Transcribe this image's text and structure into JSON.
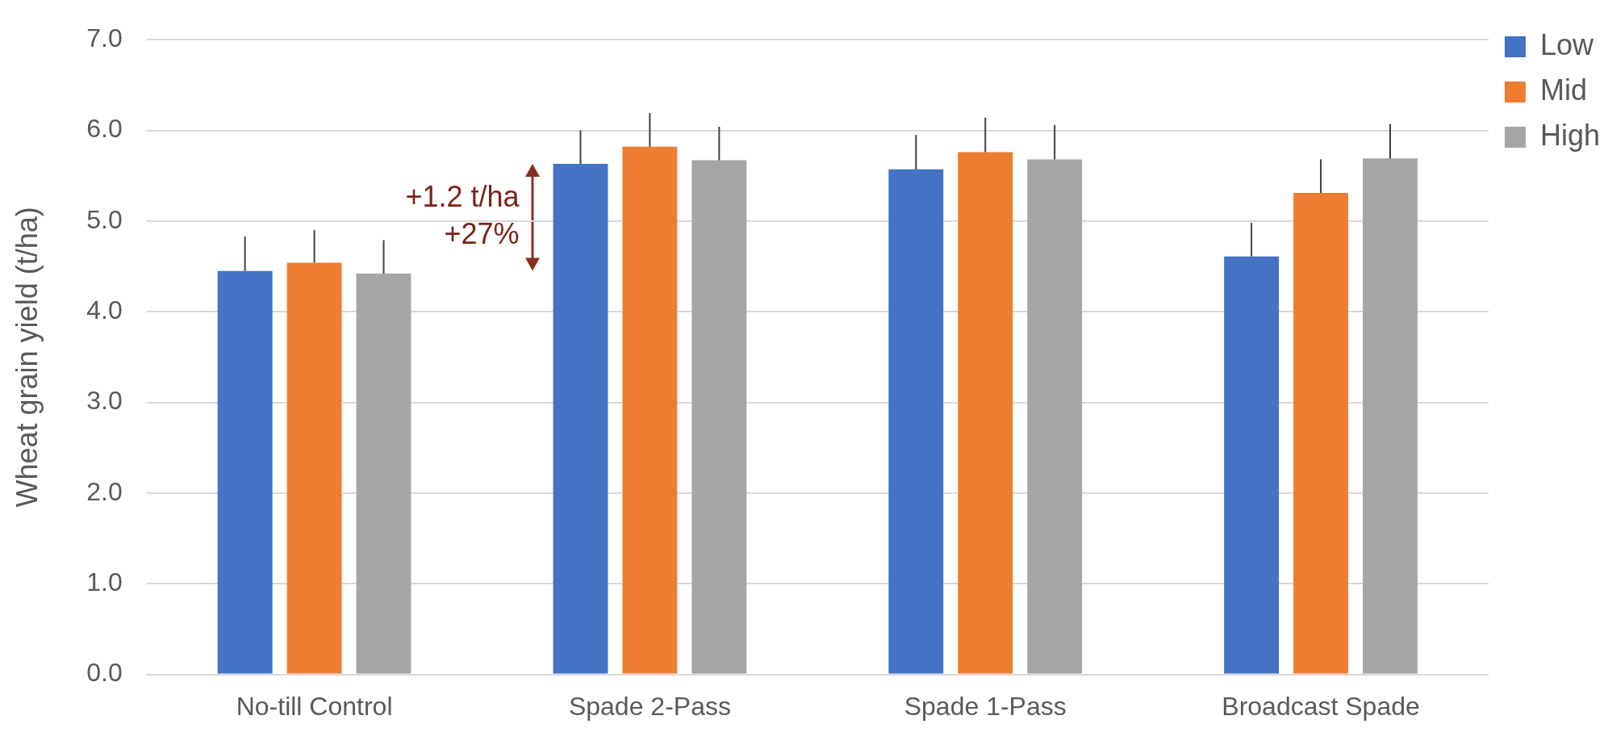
{
  "chart_data": {
    "type": "bar",
    "ylabel": "Wheat grain yield (t/ha)",
    "categories": [
      "No-till Control",
      "Spade 2-Pass",
      "Spade 1-Pass",
      "Broadcast Spade"
    ],
    "series": [
      {
        "name": "Low",
        "color": "#4472c4",
        "values": [
          4.45,
          5.63,
          5.57,
          4.61
        ],
        "errors": [
          [
            4.45,
            4.83
          ],
          [
            5.63,
            6.0
          ],
          [
            5.57,
            5.95
          ],
          [
            4.61,
            4.98
          ]
        ]
      },
      {
        "name": "Mid",
        "color": "#ed7d31",
        "values": [
          4.54,
          5.82,
          5.76,
          5.31
        ],
        "errors": [
          [
            4.54,
            4.9
          ],
          [
            5.82,
            6.19
          ],
          [
            5.76,
            6.14
          ],
          [
            5.31,
            5.68
          ]
        ]
      },
      {
        "name": "High",
        "color": "#a5a5a5",
        "values": [
          4.42,
          5.67,
          5.68,
          5.69
        ],
        "errors": [
          [
            4.42,
            4.79
          ],
          [
            5.67,
            6.04
          ],
          [
            5.68,
            6.06
          ],
          [
            5.69,
            6.07
          ]
        ]
      }
    ],
    "annotations": [
      "+1.2 t/ha",
      "+27%"
    ],
    "ylim": [
      0,
      7
    ],
    "yticks": [
      {
        "value": 0,
        "label": "0.0"
      },
      {
        "value": 1,
        "label": "1.0"
      },
      {
        "value": 2,
        "label": "2.0"
      },
      {
        "value": 3,
        "label": "3.0"
      },
      {
        "value": 4,
        "label": "4.0"
      },
      {
        "value": 5,
        "label": "5.0"
      },
      {
        "value": 6,
        "label": "6.0"
      },
      {
        "value": 7,
        "label": "7.0"
      }
    ],
    "grid": "y",
    "legend": "top right"
  }
}
